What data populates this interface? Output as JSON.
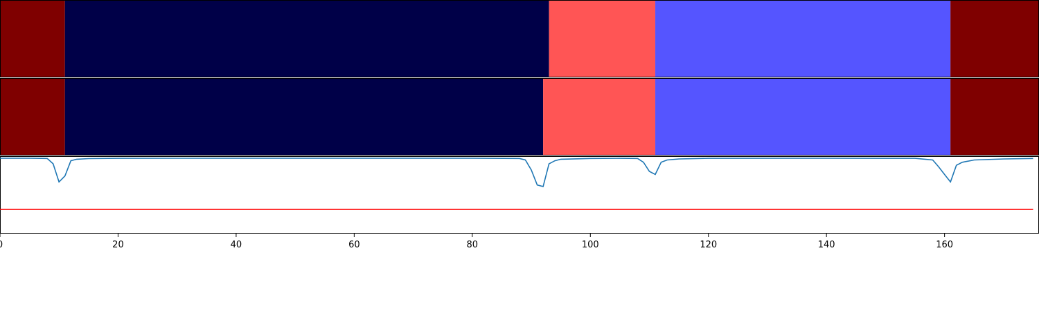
{
  "chart_data": [
    {
      "type": "heatmap",
      "panel": "top",
      "xlim": [
        0,
        176
      ],
      "segments": [
        {
          "start": 0,
          "end": 11,
          "color": "#7f0000"
        },
        {
          "start": 11,
          "end": 93,
          "color": "#000048"
        },
        {
          "start": 93,
          "end": 111,
          "color": "#ff5555"
        },
        {
          "start": 111,
          "end": 161,
          "color": "#5555ff"
        },
        {
          "start": 161,
          "end": 176,
          "color": "#7f0000"
        }
      ]
    },
    {
      "type": "heatmap",
      "panel": "middle",
      "xlim": [
        0,
        176
      ],
      "segments": [
        {
          "start": 0,
          "end": 11,
          "color": "#7f0000"
        },
        {
          "start": 11,
          "end": 92,
          "color": "#000048"
        },
        {
          "start": 92,
          "end": 111,
          "color": "#ff5555"
        },
        {
          "start": 111,
          "end": 161,
          "color": "#5555ff"
        },
        {
          "start": 161,
          "end": 176,
          "color": "#7f0000"
        }
      ]
    },
    {
      "type": "line",
      "panel": "bottom",
      "xlim": [
        0,
        176
      ],
      "ylim": [
        -0.5,
        0.01
      ],
      "series": [
        {
          "color": "#1f77b4",
          "x": [
            0,
            5,
            8,
            9,
            10,
            11,
            12,
            13,
            15,
            20,
            40,
            60,
            80,
            88,
            89,
            90,
            91,
            92,
            93,
            94,
            95,
            100,
            105,
            108,
            109,
            110,
            111,
            112,
            113,
            115,
            120,
            140,
            155,
            158,
            159,
            160,
            161,
            162,
            163,
            165,
            170,
            175
          ],
          "y": [
            -0.003,
            -0.003,
            -0.005,
            -0.04,
            -0.16,
            -0.12,
            -0.02,
            -0.01,
            -0.006,
            -0.004,
            -0.003,
            -0.003,
            -0.003,
            -0.005,
            -0.015,
            -0.08,
            -0.18,
            -0.19,
            -0.04,
            -0.02,
            -0.01,
            -0.005,
            -0.004,
            -0.005,
            -0.03,
            -0.09,
            -0.11,
            -0.03,
            -0.015,
            -0.008,
            -0.004,
            -0.003,
            -0.004,
            -0.015,
            -0.06,
            -0.11,
            -0.16,
            -0.05,
            -0.03,
            -0.015,
            -0.008,
            -0.005
          ]
        },
        {
          "color": "#ff0000",
          "x": [
            0,
            175
          ],
          "y": [
            -0.34,
            -0.34
          ]
        }
      ],
      "xticks": [
        "0",
        "20",
        "40",
        "60",
        "80",
        "100",
        "120",
        "140",
        "160"
      ]
    }
  ]
}
